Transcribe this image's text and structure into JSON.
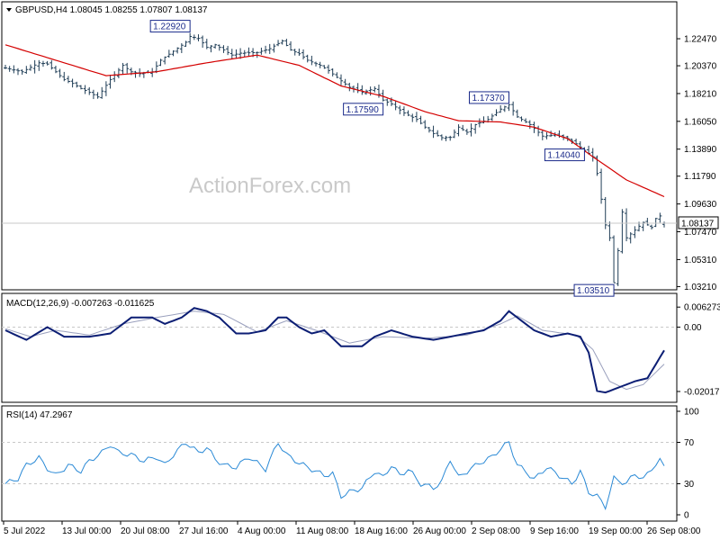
{
  "watermark": "ActionForex.com",
  "colors": {
    "bars": "#1f3d56",
    "ma": "#d40000",
    "macd": "#0c1e74",
    "signal": "#9aa0bd",
    "rsi": "#2b8ad6",
    "label_border": "#1a2a8a",
    "grid": "#c8c8c8"
  },
  "chart_data": [
    {
      "type": "ohlc",
      "header": "GBPUSD,H4  1.08045 1.08255 1.07807 1.08137",
      "symbol": "GBPUSD",
      "timeframe": "H4",
      "last_bar": {
        "open": 1.08045,
        "high": 1.08255,
        "low": 1.07807,
        "close": 1.08137
      },
      "current_price_label": "1.08137",
      "ylim": [
        1.031,
        1.252
      ],
      "y_ticks": [
        "1.22470",
        "1.20370",
        "1.18210",
        "1.16050",
        "1.13890",
        "1.11790",
        "1.09630",
        "1.07470",
        "1.05310",
        "1.03210"
      ],
      "price_path": [
        [
          0,
          1.202
        ],
        [
          4,
          1.199
        ],
        [
          8,
          1.206
        ],
        [
          10,
          1.205
        ],
        [
          14,
          1.193
        ],
        [
          16,
          1.19
        ],
        [
          18,
          1.186
        ],
        [
          20,
          1.183
        ],
        [
          22,
          1.1795
        ],
        [
          25,
          1.193
        ],
        [
          28,
          1.204
        ],
        [
          30,
          1.199
        ],
        [
          32,
          1.1975
        ],
        [
          35,
          1.199
        ],
        [
          37,
          1.208
        ],
        [
          40,
          1.215
        ],
        [
          43,
          1.222
        ],
        [
          44,
          1.2265
        ],
        [
          46,
          1.225
        ],
        [
          48,
          1.218
        ],
        [
          50,
          1.22
        ],
        [
          54,
          1.212
        ],
        [
          56,
          1.2135
        ],
        [
          60,
          1.214
        ],
        [
          63,
          1.217
        ],
        [
          66,
          1.223
        ],
        [
          68,
          1.216
        ],
        [
          70,
          1.213
        ],
        [
          72,
          1.208
        ],
        [
          75,
          1.204
        ],
        [
          77,
          1.2
        ],
        [
          80,
          1.192
        ],
        [
          82,
          1.187
        ],
        [
          85,
          1.183
        ],
        [
          88,
          1.186
        ],
        [
          90,
          1.177
        ],
        [
          92,
          1.174
        ],
        [
          95,
          1.167
        ],
        [
          98,
          1.162
        ],
        [
          100,
          1.156
        ],
        [
          102,
          1.151
        ],
        [
          104,
          1.1478
        ],
        [
          106,
          1.148
        ],
        [
          108,
          1.156
        ],
        [
          110,
          1.152
        ],
        [
          112,
          1.158
        ],
        [
          115,
          1.162
        ],
        [
          118,
          1.17
        ],
        [
          120,
          1.1735
        ],
        [
          122,
          1.164
        ],
        [
          125,
          1.158
        ],
        [
          128,
          1.149
        ],
        [
          131,
          1.15
        ],
        [
          134,
          1.147
        ],
        [
          136,
          1.143
        ],
        [
          138,
          1.138
        ],
        [
          140,
          1.133
        ],
        [
          141,
          1.12
        ],
        [
          142,
          1.1
        ],
        [
          143,
          1.08
        ],
        [
          144,
          1.07
        ],
        [
          145,
          1.0351
        ],
        [
          146,
          1.06
        ],
        [
          147,
          1.09
        ],
        [
          148,
          1.07
        ],
        [
          150,
          1.076
        ],
        [
          152,
          1.082
        ],
        [
          154,
          1.078
        ],
        [
          155,
          1.085
        ],
        [
          156,
          1.087
        ],
        [
          157,
          1.0814
        ]
      ],
      "moving_average": [
        [
          0,
          1.22
        ],
        [
          12,
          1.208
        ],
        [
          24,
          1.196
        ],
        [
          36,
          1.199
        ],
        [
          48,
          1.206
        ],
        [
          60,
          1.212
        ],
        [
          70,
          1.204
        ],
        [
          80,
          1.188
        ],
        [
          90,
          1.18
        ],
        [
          100,
          1.168
        ],
        [
          108,
          1.161
        ],
        [
          118,
          1.16
        ],
        [
          126,
          1.156
        ],
        [
          134,
          1.147
        ],
        [
          140,
          1.133
        ],
        [
          148,
          1.115
        ],
        [
          157,
          1.102
        ]
      ],
      "annotations": [
        {
          "label": "1.22920",
          "value": 1.2292
        },
        {
          "label": "1.17590",
          "value": 1.1759
        },
        {
          "label": "1.17370",
          "value": 1.1737
        },
        {
          "label": "1.14040",
          "value": 1.1404
        },
        {
          "label": "1.03510",
          "value": 1.0351
        }
      ]
    },
    {
      "type": "line",
      "header": "MACD(12,26,9) -0.007263 -0.011625",
      "name": "MACD(12,26,9)",
      "main_value": "-0.007263",
      "signal_value": "-0.011625",
      "ylim": [
        -0.023,
        0.01
      ],
      "y_ticks": [
        "0.006273",
        "0.00",
        "-0.020175"
      ],
      "macd_path": [
        [
          0,
          -0.001
        ],
        [
          5,
          -0.004
        ],
        [
          10,
          0.0
        ],
        [
          14,
          -0.003
        ],
        [
          20,
          -0.003
        ],
        [
          25,
          -0.002
        ],
        [
          30,
          0.003
        ],
        [
          35,
          0.003
        ],
        [
          38,
          0.001
        ],
        [
          42,
          0.003
        ],
        [
          45,
          0.006
        ],
        [
          48,
          0.005
        ],
        [
          51,
          0.003
        ],
        [
          55,
          -0.002
        ],
        [
          58,
          -0.002
        ],
        [
          62,
          -0.001
        ],
        [
          65,
          0.003
        ],
        [
          67,
          0.003
        ],
        [
          70,
          0.0
        ],
        [
          73,
          -0.002
        ],
        [
          76,
          -0.001
        ],
        [
          80,
          -0.006
        ],
        [
          85,
          -0.006
        ],
        [
          88,
          -0.003
        ],
        [
          92,
          -0.001
        ],
        [
          97,
          -0.003
        ],
        [
          102,
          -0.004
        ],
        [
          106,
          -0.003
        ],
        [
          110,
          -0.002
        ],
        [
          114,
          -0.001
        ],
        [
          118,
          0.002
        ],
        [
          120,
          0.005
        ],
        [
          122,
          0.003
        ],
        [
          126,
          -0.001
        ],
        [
          130,
          -0.003
        ],
        [
          134,
          -0.002
        ],
        [
          137,
          -0.003
        ],
        [
          139,
          -0.008
        ],
        [
          141,
          -0.02
        ],
        [
          143,
          -0.0205
        ],
        [
          146,
          -0.019
        ],
        [
          150,
          -0.017
        ],
        [
          153,
          -0.016
        ],
        [
          157,
          -0.0073
        ]
      ],
      "signal_path": [
        [
          0,
          -0.0005
        ],
        [
          6,
          -0.003
        ],
        [
          12,
          -0.001
        ],
        [
          20,
          -0.0025
        ],
        [
          28,
          0.001
        ],
        [
          36,
          0.003
        ],
        [
          45,
          0.005
        ],
        [
          52,
          0.004
        ],
        [
          60,
          -0.0015
        ],
        [
          67,
          0.002
        ],
        [
          74,
          -0.001
        ],
        [
          82,
          -0.005
        ],
        [
          90,
          -0.003
        ],
        [
          100,
          -0.0035
        ],
        [
          110,
          -0.0025
        ],
        [
          118,
          0.001
        ],
        [
          122,
          0.0035
        ],
        [
          128,
          -0.001
        ],
        [
          136,
          -0.0025
        ],
        [
          140,
          -0.007
        ],
        [
          144,
          -0.017
        ],
        [
          148,
          -0.0195
        ],
        [
          152,
          -0.018
        ],
        [
          157,
          -0.0116
        ]
      ]
    },
    {
      "type": "line",
      "header": "RSI(14) 47.2967",
      "name": "RSI(14)",
      "value": "47.2967",
      "ylim": [
        0,
        100
      ],
      "y_ticks": [
        "100",
        "70",
        "30",
        "0"
      ],
      "levels": [
        70,
        30
      ],
      "rsi_path": [
        [
          0,
          30
        ],
        [
          3,
          35
        ],
        [
          5,
          48
        ],
        [
          8,
          55
        ],
        [
          10,
          45
        ],
        [
          12,
          38
        ],
        [
          15,
          48
        ],
        [
          18,
          42
        ],
        [
          20,
          52
        ],
        [
          23,
          60
        ],
        [
          25,
          68
        ],
        [
          27,
          60
        ],
        [
          30,
          58
        ],
        [
          33,
          52
        ],
        [
          36,
          56
        ],
        [
          38,
          48
        ],
        [
          40,
          58
        ],
        [
          43,
          70
        ],
        [
          46,
          60
        ],
        [
          48,
          65
        ],
        [
          50,
          54
        ],
        [
          52,
          48
        ],
        [
          55,
          46
        ],
        [
          58,
          56
        ],
        [
          62,
          44
        ],
        [
          65,
          70
        ],
        [
          67,
          58
        ],
        [
          70,
          50
        ],
        [
          73,
          44
        ],
        [
          76,
          38
        ],
        [
          78,
          40
        ],
        [
          80,
          18
        ],
        [
          82,
          22
        ],
        [
          85,
          26
        ],
        [
          88,
          42
        ],
        [
          90,
          36
        ],
        [
          92,
          48
        ],
        [
          94,
          38
        ],
        [
          96,
          44
        ],
        [
          99,
          30
        ],
        [
          102,
          26
        ],
        [
          104,
          32
        ],
        [
          106,
          54
        ],
        [
          108,
          36
        ],
        [
          110,
          42
        ],
        [
          113,
          50
        ],
        [
          116,
          56
        ],
        [
          118,
          64
        ],
        [
          120,
          70
        ],
        [
          122,
          48
        ],
        [
          124,
          42
        ],
        [
          126,
          34
        ],
        [
          129,
          46
        ],
        [
          132,
          38
        ],
        [
          135,
          30
        ],
        [
          137,
          42
        ],
        [
          139,
          22
        ],
        [
          141,
          18
        ],
        [
          143,
          8
        ],
        [
          145,
          35
        ],
        [
          148,
          30
        ],
        [
          150,
          40
        ],
        [
          152,
          34
        ],
        [
          154,
          45
        ],
        [
          156,
          52
        ],
        [
          157,
          47
        ]
      ]
    }
  ],
  "x_axis": {
    "labels": [
      "5 Jul 2022",
      "13 Jul 00:00",
      "20 Jul 08:00",
      "27 Jul 16:00",
      "4 Aug 00:00",
      "11 Aug 08:00",
      "18 Aug 16:00",
      "26 Aug 00:00",
      "2 Sep 08:00",
      "9 Sep 16:00",
      "19 Sep 00:00",
      "26 Sep 08:00"
    ]
  }
}
